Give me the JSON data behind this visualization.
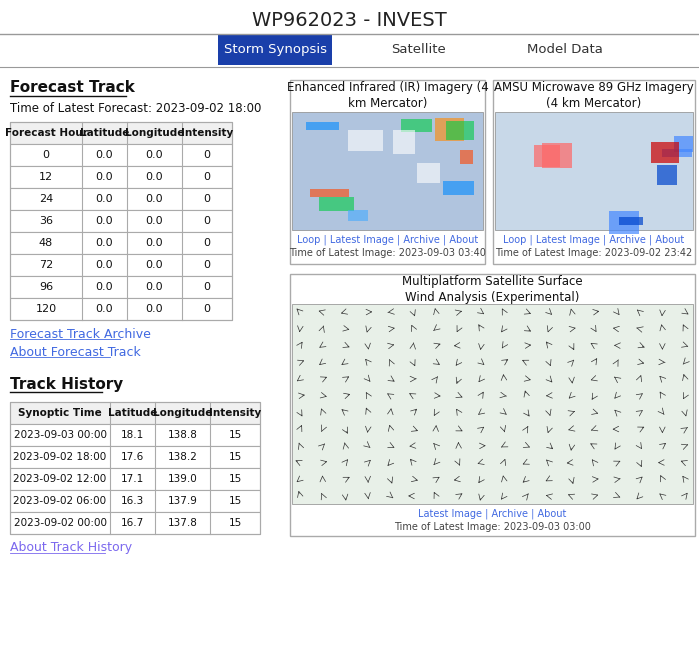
{
  "title": "WP962023 - INVEST",
  "nav_tabs": [
    "Storm Synopsis",
    "Satellite",
    "Model Data"
  ],
  "active_tab": "Storm Synopsis",
  "active_tab_bg": "#1a3faa",
  "active_tab_fg": "#ffffff",
  "inactive_tab_fg": "#333333",
  "forecast_track_label": "Forecast Track",
  "forecast_time_label": "Time of Latest Forecast: 2023-09-02 18:00",
  "forecast_headers": [
    "Forecast Hour",
    "Latitude",
    "Longitude",
    "Intensity"
  ],
  "forecast_rows": [
    [
      "0",
      "0.0",
      "0.0",
      "0"
    ],
    [
      "12",
      "0.0",
      "0.0",
      "0"
    ],
    [
      "24",
      "0.0",
      "0.0",
      "0"
    ],
    [
      "36",
      "0.0",
      "0.0",
      "0"
    ],
    [
      "48",
      "0.0",
      "0.0",
      "0"
    ],
    [
      "72",
      "0.0",
      "0.0",
      "0"
    ],
    [
      "96",
      "0.0",
      "0.0",
      "0"
    ],
    [
      "120",
      "0.0",
      "0.0",
      "0"
    ]
  ],
  "link_color": "#4169e1",
  "link_color2": "#7B68EE",
  "forecast_links": [
    "Forecast Track Archive",
    "About Forecast Track"
  ],
  "track_history_label": "Track History",
  "track_history_headers": [
    "Synoptic Time",
    "Latitude",
    "Longitude",
    "Intensity"
  ],
  "track_history_rows": [
    [
      "2023-09-03 00:00",
      "18.1",
      "138.8",
      "15"
    ],
    [
      "2023-09-02 18:00",
      "17.6",
      "138.2",
      "15"
    ],
    [
      "2023-09-02 12:00",
      "17.1",
      "139.0",
      "15"
    ],
    [
      "2023-09-02 06:00",
      "16.3",
      "137.9",
      "15"
    ],
    [
      "2023-09-02 00:00",
      "16.7",
      "137.8",
      "15"
    ]
  ],
  "track_history_links": [
    "About Track History"
  ],
  "ir_title": "Enhanced Infrared (IR) Imagery (4\nkm Mercator)",
  "ir_caption_link": "Loop | Latest Image | Archive | About",
  "ir_caption_time": "Time of Latest Image: 2023-09-03 03:40",
  "amsu_title": "AMSU Microwave 89 GHz Imagery\n(4 km Mercator)",
  "amsu_caption_link": "Loop | Latest Image | Archive | About",
  "amsu_caption_time": "Time of Latest Image: 2023-09-02 23:42",
  "wind_title": "Multiplatform Satellite Surface\nWind Analysis (Experimental)",
  "wind_caption_link": "Latest Image | Archive | About",
  "wind_caption_time": "Time of Latest Image: 2023-09-03 03:00",
  "bg_color": "#ffffff",
  "border_color": "#aaaaaa",
  "divider_color": "#999999",
  "ir_image_bg": "#b0c4de",
  "amsu_image_bg": "#c8d8e8"
}
